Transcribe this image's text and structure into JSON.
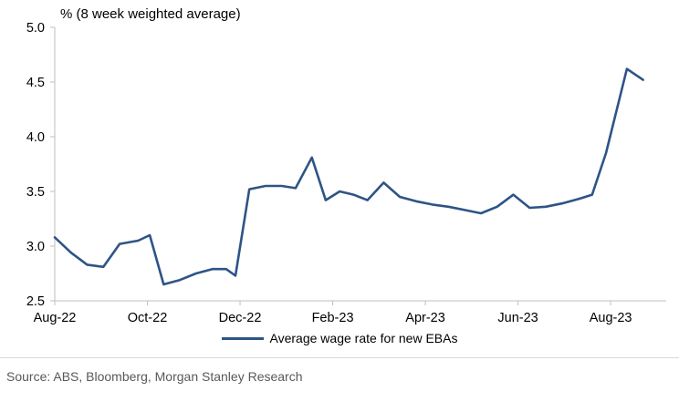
{
  "title": "% (8 week weighted average)",
  "legend": {
    "label": "Average wage rate for new EBAs"
  },
  "source": "Source: ABS, Bloomberg, Morgan Stanley Research",
  "chart_data": {
    "type": "line",
    "title": "% (8 week weighted average)",
    "xlabel": "",
    "ylabel": "%",
    "ylim": [
      2.5,
      5.0
    ],
    "y_ticks": [
      2.5,
      3.0,
      3.5,
      4.0,
      4.5,
      5.0
    ],
    "xlim": [
      0,
      13.2
    ],
    "x_ticks": [
      {
        "pos": 0,
        "label": "Aug-22"
      },
      {
        "pos": 2,
        "label": "Oct-22"
      },
      {
        "pos": 4,
        "label": "Dec-22"
      },
      {
        "pos": 6,
        "label": "Feb-23"
      },
      {
        "pos": 8,
        "label": "Apr-23"
      },
      {
        "pos": 10,
        "label": "Jun-23"
      },
      {
        "pos": 12,
        "label": "Aug-23"
      }
    ],
    "grid": false,
    "legend_position": "bottom",
    "line_color": "#2E5486",
    "axis_color": "#BFBFBF",
    "series": [
      {
        "name": "Average wage rate for new EBAs",
        "points": [
          [
            0,
            3.08
          ],
          [
            0.35,
            2.94
          ],
          [
            0.7,
            2.83
          ],
          [
            1.05,
            2.81
          ],
          [
            1.4,
            3.02
          ],
          [
            1.8,
            3.05
          ],
          [
            2.05,
            3.1
          ],
          [
            2.35,
            2.65
          ],
          [
            2.7,
            2.69
          ],
          [
            3.05,
            2.75
          ],
          [
            3.4,
            2.79
          ],
          [
            3.7,
            2.79
          ],
          [
            3.9,
            2.73
          ],
          [
            4.2,
            3.52
          ],
          [
            4.55,
            3.55
          ],
          [
            4.9,
            3.55
          ],
          [
            5.2,
            3.53
          ],
          [
            5.55,
            3.81
          ],
          [
            5.85,
            3.42
          ],
          [
            6.15,
            3.5
          ],
          [
            6.45,
            3.47
          ],
          [
            6.75,
            3.42
          ],
          [
            7.1,
            3.58
          ],
          [
            7.45,
            3.45
          ],
          [
            7.8,
            3.41
          ],
          [
            8.15,
            3.38
          ],
          [
            8.5,
            3.36
          ],
          [
            8.85,
            3.33
          ],
          [
            9.2,
            3.3
          ],
          [
            9.55,
            3.36
          ],
          [
            9.9,
            3.47
          ],
          [
            10.25,
            3.35
          ],
          [
            10.6,
            3.36
          ],
          [
            10.95,
            3.39
          ],
          [
            11.3,
            3.43
          ],
          [
            11.6,
            3.47
          ],
          [
            11.9,
            3.85
          ],
          [
            12.35,
            4.62
          ],
          [
            12.7,
            4.52
          ]
        ]
      }
    ]
  }
}
